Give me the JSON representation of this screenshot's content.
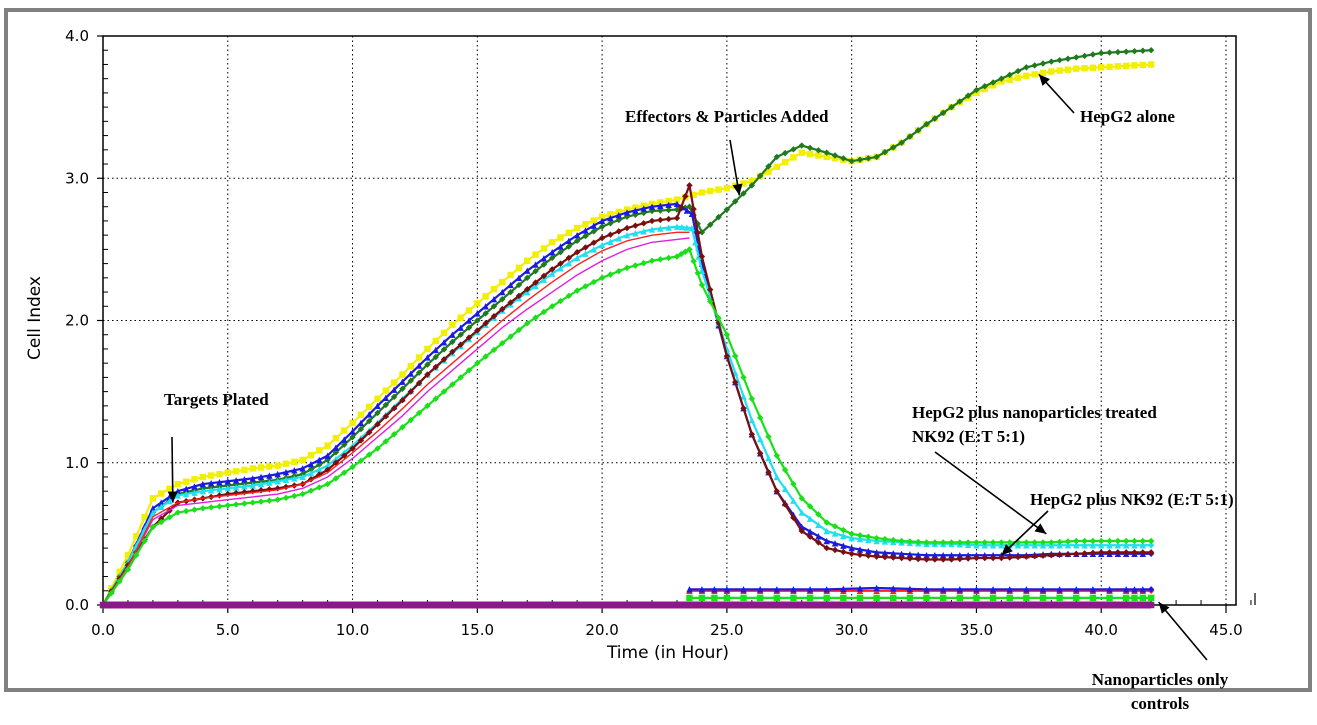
{
  "chart_data": {
    "type": "line",
    "xlabel": "Time (in Hour)",
    "ylabel": "Cell Index",
    "xlim": [
      0,
      47
    ],
    "ylim": [
      0,
      4.0
    ],
    "x_ticks": [
      "0.0",
      "5.0",
      "10.0",
      "15.0",
      "20.0",
      "25.0",
      "30.0",
      "35.0",
      "40.0",
      "45.0"
    ],
    "y_ticks": [
      "0.0",
      "1.0",
      "2.0",
      "3.0",
      "4.0"
    ],
    "grid": true,
    "colors": {
      "yellow": "#f2ef00",
      "dark_green": "#1f7a1f",
      "green": "#19e019",
      "cyan": "#20e0f0",
      "blue": "#1a1ae0",
      "maroon": "#7a0f0f",
      "magenta": "#e020e0",
      "red": "#ff2020",
      "purple": "#8a1a8a"
    },
    "series": [
      {
        "color": "yellow",
        "marker": "square",
        "x": [
          0,
          1,
          2,
          3,
          4,
          5,
          6,
          7,
          8,
          9,
          10,
          11,
          12,
          13,
          14,
          15,
          16,
          17,
          18,
          19,
          20,
          21,
          22,
          23,
          24,
          25,
          26,
          27,
          28,
          29,
          30,
          31,
          32,
          33,
          34,
          35,
          36,
          37,
          38,
          39,
          40,
          41,
          42
        ],
        "y": [
          0,
          0.35,
          0.75,
          0.85,
          0.9,
          0.93,
          0.96,
          0.98,
          1.02,
          1.12,
          1.28,
          1.45,
          1.62,
          1.8,
          1.97,
          2.12,
          2.27,
          2.42,
          2.55,
          2.65,
          2.73,
          2.78,
          2.82,
          2.85,
          2.9,
          2.93,
          2.98,
          3.08,
          3.18,
          3.15,
          3.12,
          3.15,
          3.25,
          3.38,
          3.5,
          3.6,
          3.68,
          3.72,
          3.75,
          3.77,
          3.78,
          3.79,
          3.8
        ]
      },
      {
        "color": "dark_green",
        "marker": "diamond",
        "x": [
          0,
          1,
          2,
          3,
          4,
          5,
          6,
          7,
          8,
          9,
          10,
          11,
          12,
          13,
          14,
          15,
          16,
          17,
          18,
          19,
          20,
          21,
          22,
          23,
          23.5,
          24,
          25,
          26,
          27,
          28,
          29,
          30,
          31,
          32,
          33,
          34,
          35,
          36,
          37,
          38,
          39,
          40,
          41,
          42
        ],
        "y": [
          0,
          0.3,
          0.65,
          0.78,
          0.82,
          0.84,
          0.86,
          0.88,
          0.92,
          1.02,
          1.18,
          1.35,
          1.52,
          1.69,
          1.85,
          2.0,
          2.15,
          2.3,
          2.44,
          2.56,
          2.66,
          2.73,
          2.77,
          2.78,
          2.8,
          2.62,
          2.78,
          2.95,
          3.15,
          3.23,
          3.18,
          3.12,
          3.15,
          3.25,
          3.38,
          3.5,
          3.62,
          3.7,
          3.78,
          3.82,
          3.85,
          3.88,
          3.89,
          3.9
        ]
      },
      {
        "color": "blue",
        "marker": "triangle",
        "x": [
          0,
          1,
          2,
          3,
          4,
          5,
          6,
          7,
          8,
          9,
          10,
          11,
          12,
          13,
          14,
          15,
          16,
          17,
          18,
          19,
          20,
          21,
          22,
          23,
          23.6,
          24,
          25,
          26,
          27,
          28,
          29,
          30,
          31,
          32,
          33,
          34,
          35,
          36,
          37,
          38,
          39,
          40,
          41,
          42
        ],
        "y": [
          0,
          0.3,
          0.68,
          0.8,
          0.85,
          0.87,
          0.89,
          0.92,
          0.96,
          1.05,
          1.22,
          1.4,
          1.57,
          1.74,
          1.9,
          2.05,
          2.2,
          2.35,
          2.48,
          2.6,
          2.7,
          2.76,
          2.8,
          2.82,
          2.75,
          2.4,
          1.75,
          1.2,
          0.8,
          0.55,
          0.45,
          0.4,
          0.37,
          0.36,
          0.35,
          0.35,
          0.35,
          0.35,
          0.35,
          0.36,
          0.36,
          0.36,
          0.36,
          0.36
        ]
      },
      {
        "color": "cyan",
        "marker": "triangle",
        "x": [
          0,
          1,
          2,
          3,
          4,
          5,
          6,
          7,
          8,
          9,
          10,
          11,
          12,
          13,
          14,
          15,
          16,
          17,
          18,
          19,
          20,
          21,
          22,
          23,
          23.6,
          24,
          25,
          26,
          27,
          28,
          29,
          30,
          31,
          32,
          33,
          34,
          35,
          36,
          37,
          38,
          39,
          40,
          41,
          42
        ],
        "y": [
          0,
          0.3,
          0.65,
          0.77,
          0.8,
          0.82,
          0.84,
          0.87,
          0.9,
          0.98,
          1.12,
          1.28,
          1.45,
          1.62,
          1.77,
          1.92,
          2.07,
          2.2,
          2.33,
          2.44,
          2.53,
          2.6,
          2.64,
          2.66,
          2.65,
          2.35,
          1.8,
          1.3,
          0.9,
          0.65,
          0.52,
          0.47,
          0.45,
          0.44,
          0.43,
          0.43,
          0.42,
          0.42,
          0.42,
          0.42,
          0.42,
          0.42,
          0.42,
          0.42
        ]
      },
      {
        "color": "maroon",
        "marker": "diamond",
        "x": [
          0,
          1,
          2,
          3,
          4,
          5,
          6,
          7,
          8,
          9,
          10,
          11,
          12,
          13,
          14,
          15,
          16,
          17,
          18,
          19,
          20,
          21,
          22,
          23,
          23.5,
          24,
          25,
          26,
          27,
          28,
          29,
          30,
          31,
          32,
          33,
          34,
          35,
          36,
          37,
          38,
          39,
          40,
          41,
          42
        ],
        "y": [
          0,
          0.28,
          0.55,
          0.72,
          0.75,
          0.78,
          0.8,
          0.82,
          0.85,
          0.95,
          1.1,
          1.27,
          1.44,
          1.62,
          1.78,
          1.93,
          2.08,
          2.22,
          2.36,
          2.48,
          2.58,
          2.65,
          2.7,
          2.72,
          2.95,
          2.45,
          1.75,
          1.2,
          0.8,
          0.52,
          0.4,
          0.36,
          0.34,
          0.33,
          0.32,
          0.32,
          0.33,
          0.33,
          0.34,
          0.35,
          0.36,
          0.37,
          0.37,
          0.37
        ]
      },
      {
        "color": "magenta",
        "marker": "none",
        "x": [
          0,
          1,
          2,
          3,
          4,
          5,
          6,
          7,
          8,
          9,
          10,
          11,
          12,
          13,
          14,
          15,
          16,
          17,
          18,
          19,
          20,
          21,
          22,
          23,
          23.5
        ],
        "y": [
          0,
          0.27,
          0.6,
          0.7,
          0.72,
          0.74,
          0.76,
          0.78,
          0.82,
          0.9,
          1.03,
          1.18,
          1.33,
          1.5,
          1.65,
          1.8,
          1.95,
          2.08,
          2.2,
          2.32,
          2.42,
          2.5,
          2.55,
          2.57,
          2.58
        ]
      },
      {
        "color": "red",
        "marker": "none",
        "x": [
          0,
          1,
          2,
          3,
          4,
          5,
          6,
          7,
          8,
          9,
          10,
          11,
          12,
          13,
          14,
          15,
          16,
          17,
          18,
          19,
          20,
          21,
          22,
          23,
          23.5
        ],
        "y": [
          0,
          0.27,
          0.62,
          0.72,
          0.75,
          0.77,
          0.79,
          0.81,
          0.85,
          0.93,
          1.07,
          1.22,
          1.38,
          1.55,
          1.7,
          1.85,
          2.0,
          2.14,
          2.27,
          2.39,
          2.49,
          2.56,
          2.6,
          2.62,
          2.62
        ]
      },
      {
        "color": "green",
        "marker": "diamond",
        "x": [
          0,
          1,
          2,
          3,
          4,
          5,
          6,
          7,
          8,
          9,
          10,
          11,
          12,
          13,
          14,
          15,
          16,
          17,
          18,
          19,
          20,
          21,
          22,
          23,
          23.5,
          24,
          25,
          26,
          27,
          28,
          29,
          30,
          31,
          32,
          33,
          34,
          35,
          36,
          37,
          38,
          39,
          40,
          41,
          42
        ],
        "y": [
          0,
          0.25,
          0.55,
          0.65,
          0.68,
          0.7,
          0.72,
          0.74,
          0.78,
          0.85,
          0.97,
          1.1,
          1.25,
          1.4,
          1.55,
          1.7,
          1.84,
          1.98,
          2.1,
          2.21,
          2.3,
          2.37,
          2.42,
          2.45,
          2.5,
          2.25,
          1.9,
          1.45,
          1.05,
          0.75,
          0.58,
          0.5,
          0.47,
          0.45,
          0.44,
          0.44,
          0.44,
          0.44,
          0.44,
          0.44,
          0.45,
          0.45,
          0.45,
          0.45
        ]
      },
      {
        "color": "red",
        "marker": "triangle",
        "x": [
          23.5,
          25,
          27,
          29,
          31,
          33,
          35,
          37,
          39,
          41,
          42
        ],
        "y": [
          0.1,
          0.1,
          0.1,
          0.1,
          0.1,
          0.1,
          0.1,
          0.1,
          0.1,
          0.1,
          0.1
        ]
      },
      {
        "color": "blue",
        "marker": "triangle",
        "x": [
          23.5,
          25,
          27,
          29,
          31,
          33,
          35,
          37,
          39,
          41,
          42
        ],
        "y": [
          0.11,
          0.11,
          0.11,
          0.11,
          0.12,
          0.11,
          0.11,
          0.11,
          0.11,
          0.11,
          0.11
        ]
      },
      {
        "color": "green",
        "marker": "square",
        "x": [
          23.5,
          25,
          27,
          29,
          31,
          33,
          35,
          37,
          39,
          41,
          42
        ],
        "y": [
          0.05,
          0.05,
          0.05,
          0.05,
          0.05,
          0.05,
          0.05,
          0.05,
          0.05,
          0.05,
          0.05
        ]
      },
      {
        "color": "purple",
        "marker": "square",
        "x": [
          0,
          1,
          2,
          3,
          4,
          5,
          6,
          7,
          8,
          9,
          10,
          11,
          12,
          13,
          14,
          15,
          16,
          17,
          18,
          19,
          20,
          21,
          22,
          23,
          24,
          25,
          26,
          27,
          28,
          29,
          30,
          31,
          32,
          33,
          34,
          35,
          36,
          37,
          38,
          39,
          40,
          41,
          42
        ],
        "y": [
          0,
          0,
          0,
          0,
          0,
          0,
          0,
          0,
          0,
          0,
          0,
          0,
          0,
          0,
          0,
          0,
          0,
          0,
          0,
          0,
          0,
          0,
          0,
          0,
          0,
          0,
          0,
          0,
          0,
          0,
          0,
          0,
          0,
          0,
          0,
          0,
          0,
          0,
          0,
          0,
          0,
          0,
          0
        ]
      }
    ],
    "annotations": [
      {
        "text": [
          "Targets Plated"
        ],
        "arrow_to": [
          2.8,
          0.72
        ]
      },
      {
        "text": [
          "Effectors & Particles Added"
        ],
        "arrow_to": [
          25.5,
          2.88
        ]
      },
      {
        "text": [
          "HepG2 alone"
        ],
        "arrow_to": [
          37.5,
          3.73
        ]
      },
      {
        "text": [
          "HepG2 plus nanoparticles treated",
          "NK92 (E:T 5:1)"
        ],
        "arrow_to": [
          37.8,
          0.5
        ]
      },
      {
        "text": [
          "HepG2 plus NK92 (E:T 5:1)"
        ],
        "arrow_to": [
          36.0,
          0.35
        ]
      },
      {
        "text": [
          "Nanoparticles only",
          "controls"
        ],
        "arrow_to": [
          42.3,
          0.02
        ]
      }
    ]
  }
}
